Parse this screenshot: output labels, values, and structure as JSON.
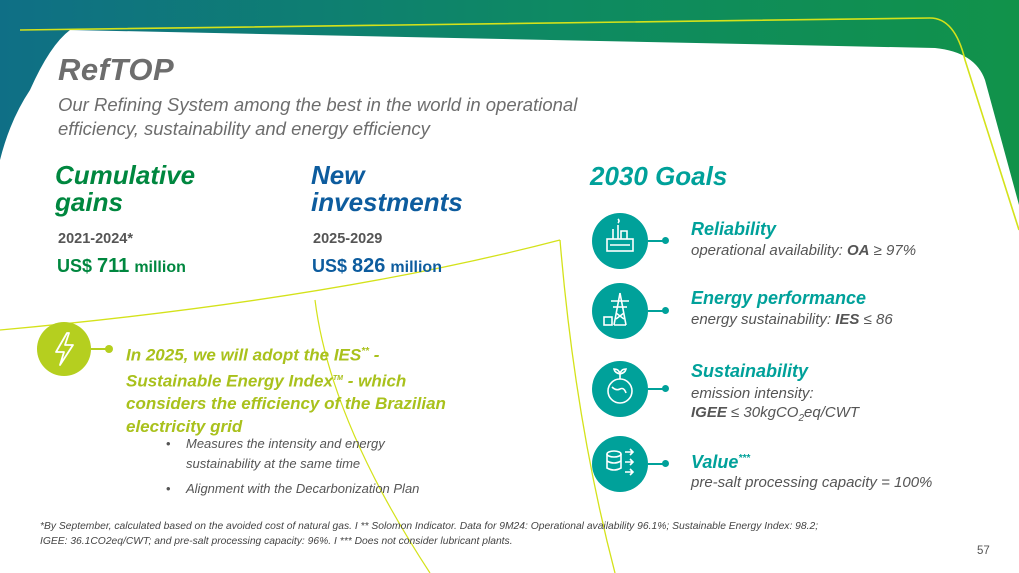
{
  "header": {
    "title": "RefTOP",
    "subtitle_line1": "Our Refining System among the best in the world in operational",
    "subtitle_line2": "efficiency, sustainability and energy efficiency"
  },
  "cumulative_gains": {
    "title_line1": "Cumulative",
    "title_line2": "gains",
    "period": "2021-2024*",
    "currency": "US$",
    "value": "711",
    "unit": "million"
  },
  "new_investments": {
    "title_line1": "New",
    "title_line2": "investments",
    "period": "2025-2029",
    "currency": "US$",
    "value": "826",
    "unit": "million"
  },
  "ies_note": {
    "line1_a": "In 2025, we will adopt the IES",
    "line1_sup": "**",
    "line1_b": " -",
    "line2_a": "Sustainable Energy Index",
    "line2_sup": "TM",
    "line2_b": " - which",
    "line3": "considers the efficiency of the Brazilian",
    "line4": "electricity grid",
    "bullets": [
      {
        "line1": "Measures the intensity and energy",
        "line2": "sustainability at the same time"
      },
      {
        "line1": "Alignment with the Decarbonization Plan",
        "line2": ""
      }
    ]
  },
  "goals": {
    "title": "2030 Goals",
    "items": [
      {
        "name": "Reliability",
        "desc_prefix": "operational availability: ",
        "desc_bold": "OA",
        "desc_suffix": " ≥ 97%",
        "icon": "refinery-icon"
      },
      {
        "name": "Energy performance",
        "desc_prefix": "energy sustainability: ",
        "desc_bold": "IES",
        "desc_suffix": " ≤ 86",
        "icon": "power-tower-icon"
      },
      {
        "name": "Sustainability",
        "desc_line1": "emission intensity:",
        "desc_bold": "IGEE",
        "desc_mid": " ≤ 30kgCO",
        "desc_sub": "2",
        "desc_suffix": "eq/CWT",
        "icon": "globe-plant-icon"
      },
      {
        "name": "Value",
        "name_sup": "***",
        "desc": "pre-salt processing capacity = 100%",
        "icon": "coins-arrows-icon"
      }
    ]
  },
  "footnote": {
    "line1": "*By September, calculated based on the avoided cost of natural gas. I ** Solomon Indicator. Data for 9M24: Operational availability 96.1%; Sustainable Energy Index: 98.2;",
    "line2": "IGEE: 36.1CO2eq/CWT; and pre-salt processing capacity: 96%. I  *** Does not consider lubricant plants."
  },
  "page_number": "57",
  "colors": {
    "green": "#00873f",
    "blue": "#0d5c9e",
    "teal": "#00a19a",
    "lime": "#b5cf1f",
    "grey_text": "#6d6d6d"
  }
}
